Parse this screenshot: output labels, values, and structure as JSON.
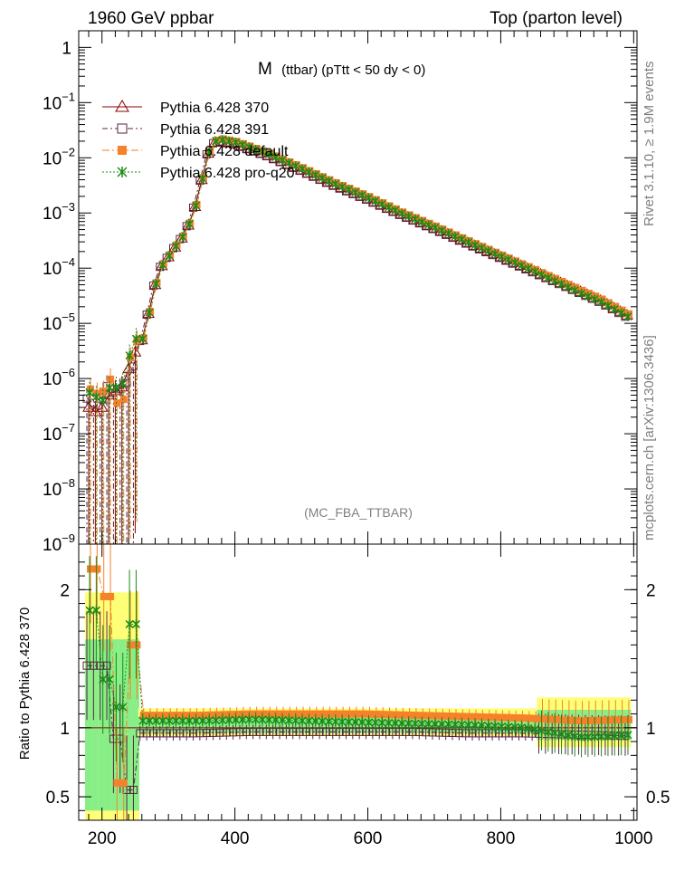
{
  "header": {
    "left": "1960 GeV ppbar",
    "right": "Top (parton level)"
  },
  "plot_title": {
    "main": "M",
    "sub": "(ttbar) (pTtt < 50 dy < 0)"
  },
  "side_text": {
    "rivet": "Rivet 3.1.10, ≥ 1.9M events",
    "mcplots": "mcplots.cern.ch [arXiv:1306.3436]"
  },
  "analysis_label": "(MC_FBA_TTBAR)",
  "ratio_ylabel": "Ratio to Pythia 6.428 370",
  "colors": {
    "p370": "#8b0000",
    "p391": "#5a2340",
    "default": "#f5822a",
    "proq20": "#1a8a1a",
    "band_yellow": "#ffff77",
    "band_green": "#88ee88"
  },
  "chart_data": [
    {
      "type": "line",
      "yscale": "log",
      "ylim": [
        1e-09,
        2
      ],
      "xlim": [
        165,
        1005
      ],
      "y_ticks": [
        {
          "v": 1,
          "mant": "1",
          "exp": ""
        },
        {
          "v": 0.1,
          "mant": "10",
          "exp": "−1"
        },
        {
          "v": 0.01,
          "mant": "10",
          "exp": "−2"
        },
        {
          "v": 0.001,
          "mant": "10",
          "exp": "−3"
        },
        {
          "v": 0.0001,
          "mant": "10",
          "exp": "−4"
        },
        {
          "v": 1e-05,
          "mant": "10",
          "exp": "−5"
        },
        {
          "v": 1e-06,
          "mant": "10",
          "exp": "−6"
        },
        {
          "v": 1e-07,
          "mant": "10",
          "exp": "−7"
        },
        {
          "v": 1e-08,
          "mant": "10",
          "exp": "−8"
        },
        {
          "v": 1e-09,
          "mant": "10",
          "exp": "−9"
        }
      ],
      "legend": [
        "Pythia 6.428 370",
        "Pythia 6.428 391",
        "Pythia 6.428 default",
        "Pythia 6.428 pro-q20"
      ],
      "legend_position": "top-left",
      "shape_points": [
        [
          180,
          3e-07
        ],
        [
          190,
          2.5e-07
        ],
        [
          200,
          3e-07
        ],
        [
          210,
          5e-07
        ],
        [
          220,
          6e-07
        ],
        [
          230,
          7e-07
        ],
        [
          240,
          1.5e-06
        ],
        [
          250,
          3e-06
        ],
        [
          260,
          5e-06
        ],
        [
          270,
          1.5e-05
        ],
        [
          280,
          5e-05
        ],
        [
          290,
          0.00011
        ],
        [
          300,
          0.00016
        ],
        [
          310,
          0.00024
        ],
        [
          320,
          0.00035
        ],
        [
          330,
          0.0006
        ],
        [
          340,
          0.0013
        ],
        [
          350,
          0.004
        ],
        [
          360,
          0.012
        ],
        [
          370,
          0.019
        ],
        [
          380,
          0.02
        ],
        [
          400,
          0.018
        ],
        [
          450,
          0.011
        ],
        [
          500,
          0.006
        ],
        [
          550,
          0.0032
        ],
        [
          600,
          0.0018
        ],
        [
          650,
          0.00095
        ],
        [
          700,
          0.00053
        ],
        [
          750,
          0.00029
        ],
        [
          800,
          0.00016
        ],
        [
          850,
          8.8e-05
        ],
        [
          900,
          4.8e-05
        ],
        [
          950,
          2.6e-05
        ],
        [
          995,
          1.3e-05
        ]
      ],
      "series": [
        {
          "name": "Pythia 6.428 370",
          "scale": [
            1.0,
            1.0
          ]
        },
        {
          "name": "Pythia 6.428 391",
          "scale": [
            0.95,
            0.95
          ]
        },
        {
          "name": "Pythia 6.428 default",
          "scale": [
            1.1,
            1.05
          ]
        },
        {
          "name": "Pythia 6.428 pro-q20",
          "scale": [
            1.05,
            0.95
          ]
        }
      ]
    },
    {
      "type": "line",
      "xlabel": "",
      "ylabel": "Ratio to Pythia 6.428 370",
      "ylim": [
        0.33,
        2.33
      ],
      "xlim": [
        165,
        1005
      ],
      "y_ticks": [
        2,
        1,
        0.5
      ],
      "x_ticks": [
        200,
        400,
        600,
        800,
        1000
      ],
      "series": [
        {
          "name": "Pythia 6.428 391",
          "values": [
            0.96,
            0.96,
            0.97,
            0.97,
            0.97,
            0.97,
            0.96,
            0.96,
            0.95,
            0.94
          ],
          "low_mass_values": [
            1.45,
            1.45,
            0.92,
            0.55
          ]
        },
        {
          "name": "Pythia 6.428 default",
          "values": [
            1.09,
            1.09,
            1.1,
            1.1,
            1.1,
            1.09,
            1.08,
            1.07,
            1.05,
            1.06
          ],
          "low_mass_values": [
            2.15,
            1.95,
            0.6,
            1.6
          ]
        },
        {
          "name": "Pythia 6.428 pro-q20",
          "values": [
            1.05,
            1.05,
            1.06,
            1.05,
            1.04,
            1.03,
            1.02,
            1.0,
            0.93,
            0.95
          ],
          "low_mass_values": [
            1.85,
            1.35,
            1.15,
            1.75
          ]
        }
      ]
    }
  ]
}
